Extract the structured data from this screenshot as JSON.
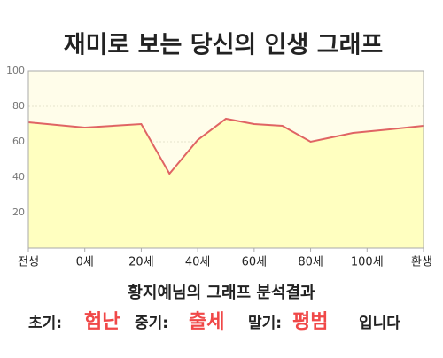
{
  "chart_data": {
    "type": "line",
    "title": "재미로 보는 당신의 인생 그래프",
    "x": [
      -20,
      0,
      20,
      30,
      40,
      50,
      60,
      70,
      80,
      95,
      108,
      120
    ],
    "series": [
      {
        "color": "#e06464",
        "values": [
          71,
          68,
          70,
          42,
          61,
          73,
          70,
          69,
          60,
          65,
          67,
          69
        ]
      }
    ],
    "area": true,
    "area_color": "#ffffc0",
    "background_color": "#fffdea",
    "xlim": [
      -20,
      120
    ],
    "xticks": [
      {
        "value": -20,
        "label": "전생"
      },
      {
        "value": 0,
        "label": "0세"
      },
      {
        "value": 20,
        "label": "20세"
      },
      {
        "value": 40,
        "label": "40세"
      },
      {
        "value": 60,
        "label": "60세"
      },
      {
        "value": 80,
        "label": "80세"
      },
      {
        "value": 100,
        "label": "100세"
      },
      {
        "value": 120,
        "label": "환생"
      }
    ],
    "ylim": [
      0,
      100
    ],
    "yticks": [
      20,
      40,
      60,
      80,
      100
    ],
    "grid": true
  },
  "result": {
    "heading": "황지예님의 그래프 분석결과",
    "early_label": "초기:",
    "early": "험난",
    "middle_label": "중기:",
    "middle": "출세",
    "late_label": "말기:",
    "late": "평범",
    "ending": "입니다"
  }
}
